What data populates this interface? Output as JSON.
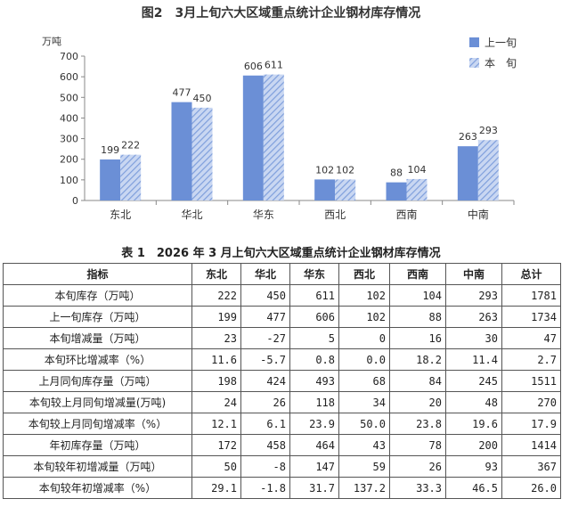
{
  "figure_title": "图2　3月上旬六大区域重点统计企业钢材库存情况",
  "chart_data": {
    "type": "bar",
    "title": "图2　3月上旬六大区域重点统计企业钢材库存情况",
    "ylabel": "万吨",
    "xlabel": "",
    "categories": [
      "东北",
      "华北",
      "华东",
      "西北",
      "西南",
      "中南"
    ],
    "ylim": [
      0,
      700
    ],
    "yticks": [
      0,
      100,
      200,
      300,
      400,
      500,
      600,
      700
    ],
    "grid": false,
    "legend_position": "top-right",
    "series": [
      {
        "name": "上一旬",
        "values": [
          199,
          477,
          606,
          102,
          88,
          263
        ],
        "color": "#6b8fd6",
        "pattern": "solid"
      },
      {
        "name": "本　旬",
        "values": [
          222,
          450,
          611,
          102,
          104,
          293
        ],
        "color": "#9fb8e6",
        "pattern": "diagonal-hatch"
      }
    ]
  },
  "table": {
    "title": "表 1　2026 年 3 月上旬六大区域重点统计企业钢材库存情况",
    "headers": [
      "指标",
      "东北",
      "华北",
      "华东",
      "西北",
      "西南",
      "中南",
      "总计"
    ],
    "rows": [
      {
        "label": "本旬库存（万吨）",
        "values": [
          "222",
          "450",
          "611",
          "102",
          "104",
          "293",
          "1781"
        ]
      },
      {
        "label": "上一旬库存（万吨）",
        "values": [
          "199",
          "477",
          "606",
          "102",
          "88",
          "263",
          "1734"
        ]
      },
      {
        "label": "本旬增减量（万吨）",
        "values": [
          "23",
          "-27",
          "5",
          "0",
          "16",
          "30",
          "47"
        ]
      },
      {
        "label": "本旬环比增减率（%）",
        "values": [
          "11.6",
          "-5.7",
          "0.8",
          "0.0",
          "18.2",
          "11.4",
          "2.7"
        ]
      },
      {
        "label": "上月同旬库存量（万吨）",
        "values": [
          "198",
          "424",
          "493",
          "68",
          "84",
          "245",
          "1511"
        ]
      },
      {
        "label": "本旬较上月同旬增减量(万吨)",
        "values": [
          "24",
          "26",
          "118",
          "34",
          "20",
          "48",
          "270"
        ]
      },
      {
        "label": "本旬较上月同旬增减率（%）",
        "values": [
          "12.1",
          "6.1",
          "23.9",
          "50.0",
          "23.8",
          "19.6",
          "17.9"
        ]
      },
      {
        "label": "年初库存量（万吨）",
        "values": [
          "172",
          "458",
          "464",
          "43",
          "78",
          "200",
          "1414"
        ]
      },
      {
        "label": "本旬较年初增减量（万吨）",
        "values": [
          "50",
          "-8",
          "147",
          "59",
          "26",
          "93",
          "367"
        ]
      },
      {
        "label": "本旬较年初增减率（%）",
        "values": [
          "29.1",
          "-1.8",
          "31.7",
          "137.2",
          "33.3",
          "46.5",
          "26.0"
        ]
      }
    ]
  }
}
